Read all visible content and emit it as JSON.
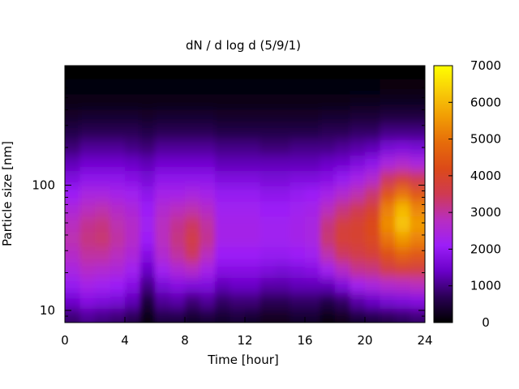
{
  "chart_data": {
    "type": "heatmap",
    "title": "dN / d log d (5/9/1)",
    "xlabel": "Time [hour]",
    "ylabel": "Particle size [nm]",
    "x_range": [
      0,
      24
    ],
    "x_ticks": [
      0,
      4,
      8,
      12,
      16,
      20,
      24
    ],
    "y_scale": "log",
    "y_range_nm": [
      8,
      900
    ],
    "y_ticks": [
      10,
      100
    ],
    "colorbar": {
      "range": [
        0,
        7000
      ],
      "ticks": [
        0,
        1000,
        2000,
        3000,
        4000,
        5000,
        6000,
        7000
      ],
      "colormap": [
        "#000000",
        "#2a0055",
        "#6a00c8",
        "#9c1ef8",
        "#b82ec0",
        "#cf3a52",
        "#dc4a18",
        "#e66c0a",
        "#f19c04",
        "#f8cc08",
        "#ffff00"
      ]
    },
    "size_bins_nm": [
      9,
      12,
      16,
      21,
      28,
      37,
      49,
      65,
      86,
      114,
      151,
      200,
      265,
      351,
      465,
      616,
      816
    ],
    "time_hours": [
      0.5,
      1.5,
      2.5,
      3.5,
      4.5,
      5.5,
      6.5,
      7.5,
      8.5,
      9.5,
      10.5,
      11.5,
      12.5,
      13.5,
      14.5,
      15.5,
      16.5,
      17.5,
      18.5,
      19.5,
      20.5,
      21.5,
      22.5,
      23.5
    ],
    "values": [
      [
        900,
        1100,
        1000,
        900,
        700,
        200,
        600,
        600,
        400,
        500,
        400,
        500,
        400,
        300,
        300,
        400,
        400,
        200,
        300,
        500,
        600,
        700,
        800,
        900
      ],
      [
        1500,
        1800,
        1700,
        1600,
        1300,
        500,
        1100,
        1200,
        900,
        1100,
        800,
        900,
        900,
        700,
        700,
        800,
        800,
        600,
        800,
        1200,
        1400,
        1600,
        1700,
        1800
      ],
      [
        2000,
        2300,
        2200,
        2100,
        1800,
        1000,
        1600,
        1800,
        1700,
        1700,
        1300,
        1400,
        1400,
        1200,
        1200,
        1300,
        1300,
        1300,
        1700,
        2200,
        2400,
        2600,
        2700,
        2800
      ],
      [
        2400,
        2700,
        2600,
        2500,
        2200,
        1400,
        2200,
        2500,
        2700,
        2300,
        1800,
        1800,
        1800,
        1700,
        1600,
        1700,
        1800,
        2200,
        2700,
        3100,
        3200,
        3600,
        3800,
        3700
      ],
      [
        2700,
        3000,
        3000,
        2800,
        2500,
        1800,
        2600,
        3000,
        3400,
        2800,
        2100,
        2100,
        2100,
        2000,
        2000,
        2100,
        2200,
        2900,
        3400,
        3600,
        3800,
        4300,
        4700,
        4500
      ],
      [
        2900,
        3200,
        3300,
        3000,
        2700,
        2100,
        2800,
        3200,
        3600,
        3100,
        2300,
        2300,
        2300,
        2200,
        2200,
        2300,
        2400,
        3300,
        3800,
        3900,
        4100,
        5000,
        5500,
        5200
      ],
      [
        2800,
        3100,
        3200,
        2900,
        2700,
        2200,
        2800,
        3100,
        3400,
        3000,
        2300,
        2300,
        2300,
        2200,
        2200,
        2300,
        2400,
        3200,
        3700,
        3900,
        4200,
        5400,
        6200,
        5600
      ],
      [
        2500,
        2800,
        2900,
        2700,
        2500,
        2100,
        2600,
        2800,
        2900,
        2700,
        2200,
        2200,
        2200,
        2100,
        2100,
        2200,
        2300,
        2800,
        3200,
        3500,
        3900,
        5200,
        6000,
        5300
      ],
      [
        2100,
        2400,
        2400,
        2300,
        2200,
        1900,
        2300,
        2300,
        2400,
        2300,
        2000,
        2000,
        2000,
        1900,
        1900,
        2000,
        2100,
        2300,
        2600,
        2900,
        3300,
        4400,
        5000,
        4500
      ],
      [
        1700,
        1900,
        1900,
        1900,
        1800,
        1600,
        1900,
        1900,
        1900,
        1900,
        1700,
        1700,
        1700,
        1600,
        1600,
        1700,
        1700,
        1800,
        2000,
        2300,
        2600,
        3400,
        3800,
        3500
      ],
      [
        1300,
        1500,
        1500,
        1500,
        1400,
        1300,
        1500,
        1500,
        1500,
        1500,
        1300,
        1300,
        1300,
        1300,
        1300,
        1300,
        1300,
        1400,
        1500,
        1700,
        1900,
        2400,
        2600,
        2400
      ],
      [
        900,
        1100,
        1100,
        1100,
        1000,
        900,
        1100,
        1100,
        1100,
        1100,
        1000,
        1000,
        1000,
        900,
        900,
        1000,
        1000,
        1000,
        1100,
        1200,
        1300,
        1600,
        1700,
        1600
      ],
      [
        600,
        700,
        700,
        700,
        700,
        600,
        700,
        700,
        700,
        700,
        600,
        600,
        600,
        600,
        600,
        600,
        600,
        700,
        700,
        800,
        800,
        1000,
        1000,
        1000
      ],
      [
        350,
        400,
        400,
        400,
        400,
        350,
        400,
        400,
        400,
        400,
        350,
        350,
        350,
        350,
        350,
        350,
        350,
        400,
        400,
        450,
        450,
        550,
        550,
        550
      ],
      [
        180,
        200,
        200,
        200,
        200,
        180,
        200,
        200,
        200,
        200,
        180,
        180,
        180,
        180,
        180,
        180,
        180,
        200,
        200,
        220,
        220,
        260,
        260,
        260
      ],
      [
        80,
        90,
        90,
        90,
        90,
        80,
        90,
        90,
        90,
        90,
        80,
        80,
        80,
        80,
        80,
        80,
        80,
        90,
        90,
        100,
        100,
        110,
        110,
        110
      ],
      [
        20,
        20,
        20,
        20,
        20,
        20,
        20,
        20,
        20,
        20,
        20,
        20,
        20,
        20,
        20,
        20,
        20,
        20,
        20,
        20,
        20,
        20,
        20,
        20
      ]
    ]
  }
}
